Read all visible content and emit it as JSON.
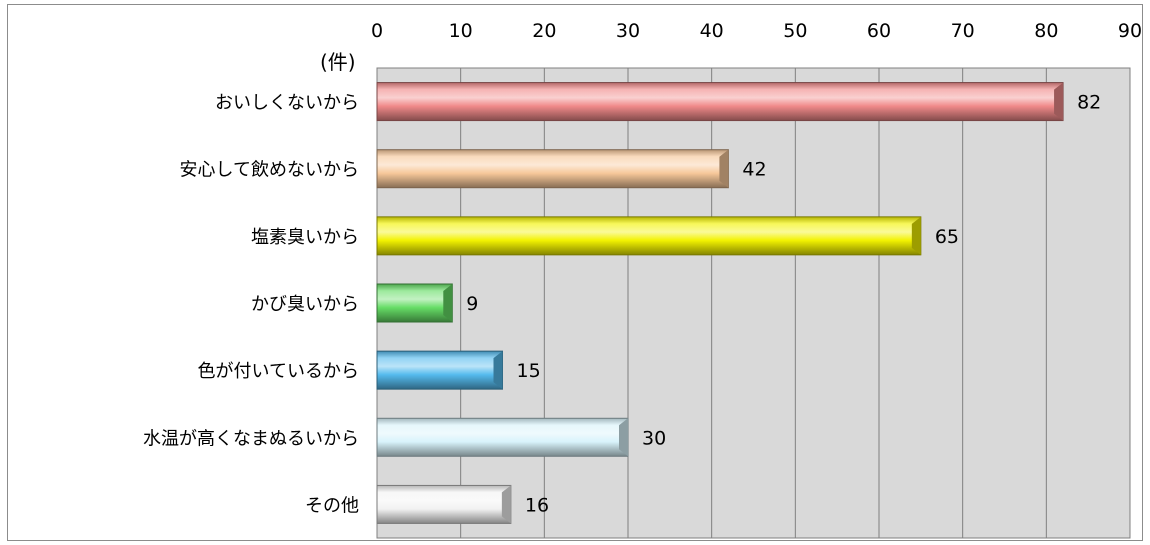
{
  "chart_data": {
    "type": "bar",
    "orientation": "horizontal",
    "unit_label": "(件)",
    "categories": [
      "おいしくないから",
      "安心して飲めないから",
      "塩素臭いから",
      "かび臭いから",
      "色が付いているから",
      "水温が高くなまぬるいから",
      "その他"
    ],
    "values": [
      82,
      42,
      65,
      9,
      15,
      30,
      16
    ],
    "bar_colors": [
      "#f08a8a",
      "#f7c89a",
      "#f2f200",
      "#66dd66",
      "#55bbee",
      "#d8f3fb",
      "#f2f2f2"
    ],
    "xlim": [
      0,
      90
    ],
    "xticks": [
      0,
      10,
      20,
      30,
      40,
      50,
      60,
      70,
      80,
      90
    ],
    "x_axis_position": "top",
    "grid": true,
    "plot_background": "#d9d9d9",
    "title": "",
    "xlabel": "",
    "ylabel": ""
  }
}
